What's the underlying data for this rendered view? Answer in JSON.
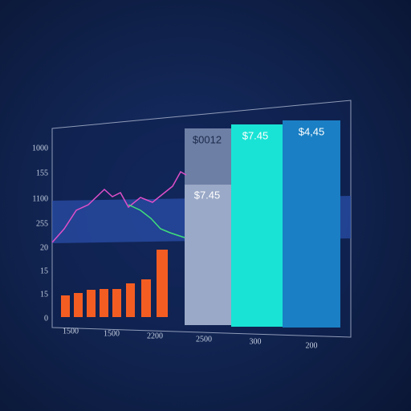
{
  "axis_labels": {
    "left": [
      "1000",
      "155",
      "1100",
      "255",
      "20",
      "15",
      "15",
      "0"
    ],
    "bottom": [
      "1500",
      "1500",
      "2200",
      "2500",
      "300",
      "200"
    ]
  },
  "panels": [
    {
      "label": "$0012"
    },
    {
      "label": "$7.45"
    },
    {
      "label": "$7.45"
    },
    {
      "label": "$4,45"
    }
  ]
}
